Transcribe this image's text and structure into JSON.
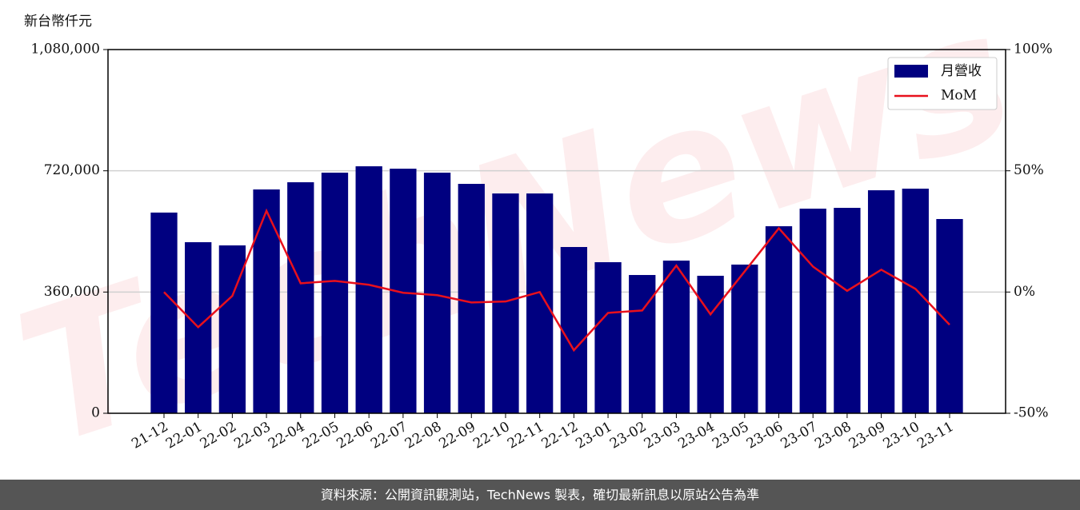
{
  "chart_data": {
    "type": "bar",
    "ylabel": "新台幣仟元",
    "watermark": "TechNews",
    "categories": [
      "21-12",
      "22-01",
      "22-02",
      "22-03",
      "22-04",
      "22-05",
      "22-06",
      "22-07",
      "22-08",
      "22-09",
      "22-10",
      "22-11",
      "22-12",
      "23-01",
      "23-02",
      "23-03",
      "23-04",
      "23-05",
      "23-06",
      "23-07",
      "23-08",
      "23-09",
      "23-10",
      "23-11"
    ],
    "series": [
      {
        "name": "月營收",
        "type": "bar",
        "color": "#000080",
        "values": [
          596000,
          508000,
          498500,
          664600,
          686000,
          714500,
          733400,
          726300,
          714500,
          681200,
          652700,
          652700,
          493700,
          448600,
          410600,
          453400,
          408300,
          441500,
          555400,
          607600,
          610000,
          662200,
          667000,
          576800
        ]
      },
      {
        "name": "MoM",
        "type": "line",
        "axis": "y2",
        "color": "#e8101c",
        "values": [
          0,
          -14.5,
          -1.6,
          33.5,
          3.6,
          4.6,
          3,
          -0.3,
          -1.3,
          -4.3,
          -3.9,
          0,
          -24,
          -8.6,
          -7.6,
          10.9,
          -9.2,
          8.5,
          26.3,
          10.5,
          0.5,
          9.2,
          1.3,
          -13.5
        ]
      }
    ],
    "ylim": [
      0,
      1080000
    ],
    "yticks": [
      0,
      {
        "value": 360000,
        "label": "360,000"
      },
      {
        "value": 720000,
        "label": "720,000"
      },
      {
        "value": 1080000,
        "label": "1,080,000"
      }
    ],
    "y2lim": [
      -50,
      100
    ],
    "y2ticks": [
      {
        "value": -50,
        "label": "-50%"
      },
      {
        "value": 0,
        "label": "0%"
      },
      {
        "value": 50,
        "label": "50%"
      },
      {
        "value": 100,
        "label": "100%"
      }
    ],
    "grid": true,
    "legend": "upper-right"
  },
  "footer": "資料來源：公開資訊觀測站，TechNews 製表，確切最新訊息以原站公告為準"
}
